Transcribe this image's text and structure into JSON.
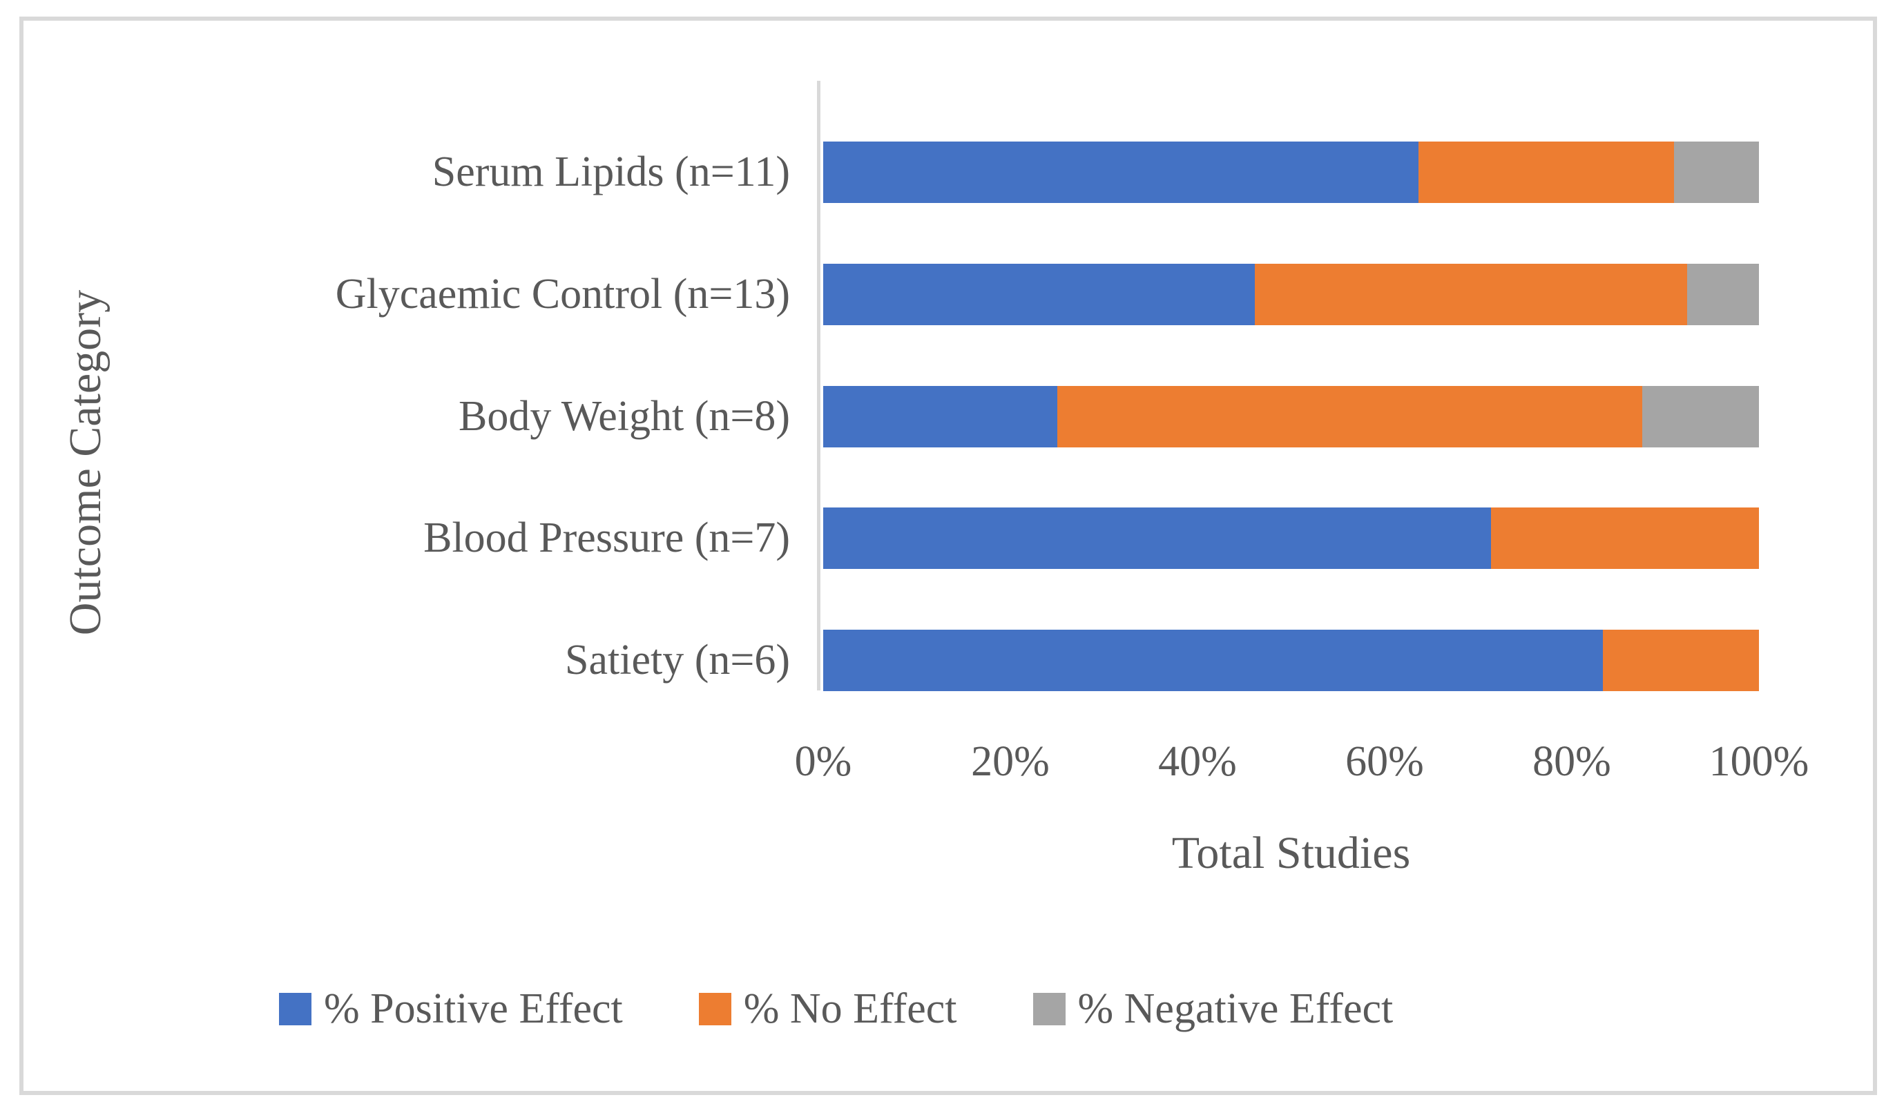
{
  "figure": {
    "background_color": "#FFFFFF",
    "border_color": "#D9D9D9",
    "text_color": "#595959",
    "axis_line_color": "#D9D9D9"
  },
  "chart_data": {
    "type": "bar",
    "orientation": "horizontal",
    "stacked": true,
    "stacked_unit": "percent",
    "title": "",
    "xlabel": "Total Studies",
    "ylabel": "Outcome Category",
    "xlim": [
      0,
      100
    ],
    "x_tick_labels": [
      "0%",
      "20%",
      "40%",
      "60%",
      "80%",
      "100%"
    ],
    "x_tick_values": [
      0,
      20,
      40,
      60,
      80,
      100
    ],
    "grid": false,
    "categories": [
      "Serum Lipids (n=11)",
      "Glycaemic Control (n=13)",
      "Body Weight (n=8)",
      "Blood Pressure (n=7)",
      "Satiety (n=6)"
    ],
    "series": [
      {
        "name": "% Positive Effect",
        "color": "#4472C4",
        "values": [
          63.6,
          46.2,
          25.0,
          71.4,
          83.3
        ]
      },
      {
        "name": "% No Effect",
        "color": "#ED7D31",
        "values": [
          27.3,
          46.2,
          62.5,
          28.6,
          16.7
        ]
      },
      {
        "name": "% Negative Effect",
        "color": "#A5A5A5",
        "values": [
          9.1,
          7.7,
          12.5,
          0,
          0
        ]
      }
    ],
    "legend": {
      "position": "bottom",
      "entries": [
        "% Positive Effect",
        "% No Effect",
        "% Negative Effect"
      ]
    }
  }
}
